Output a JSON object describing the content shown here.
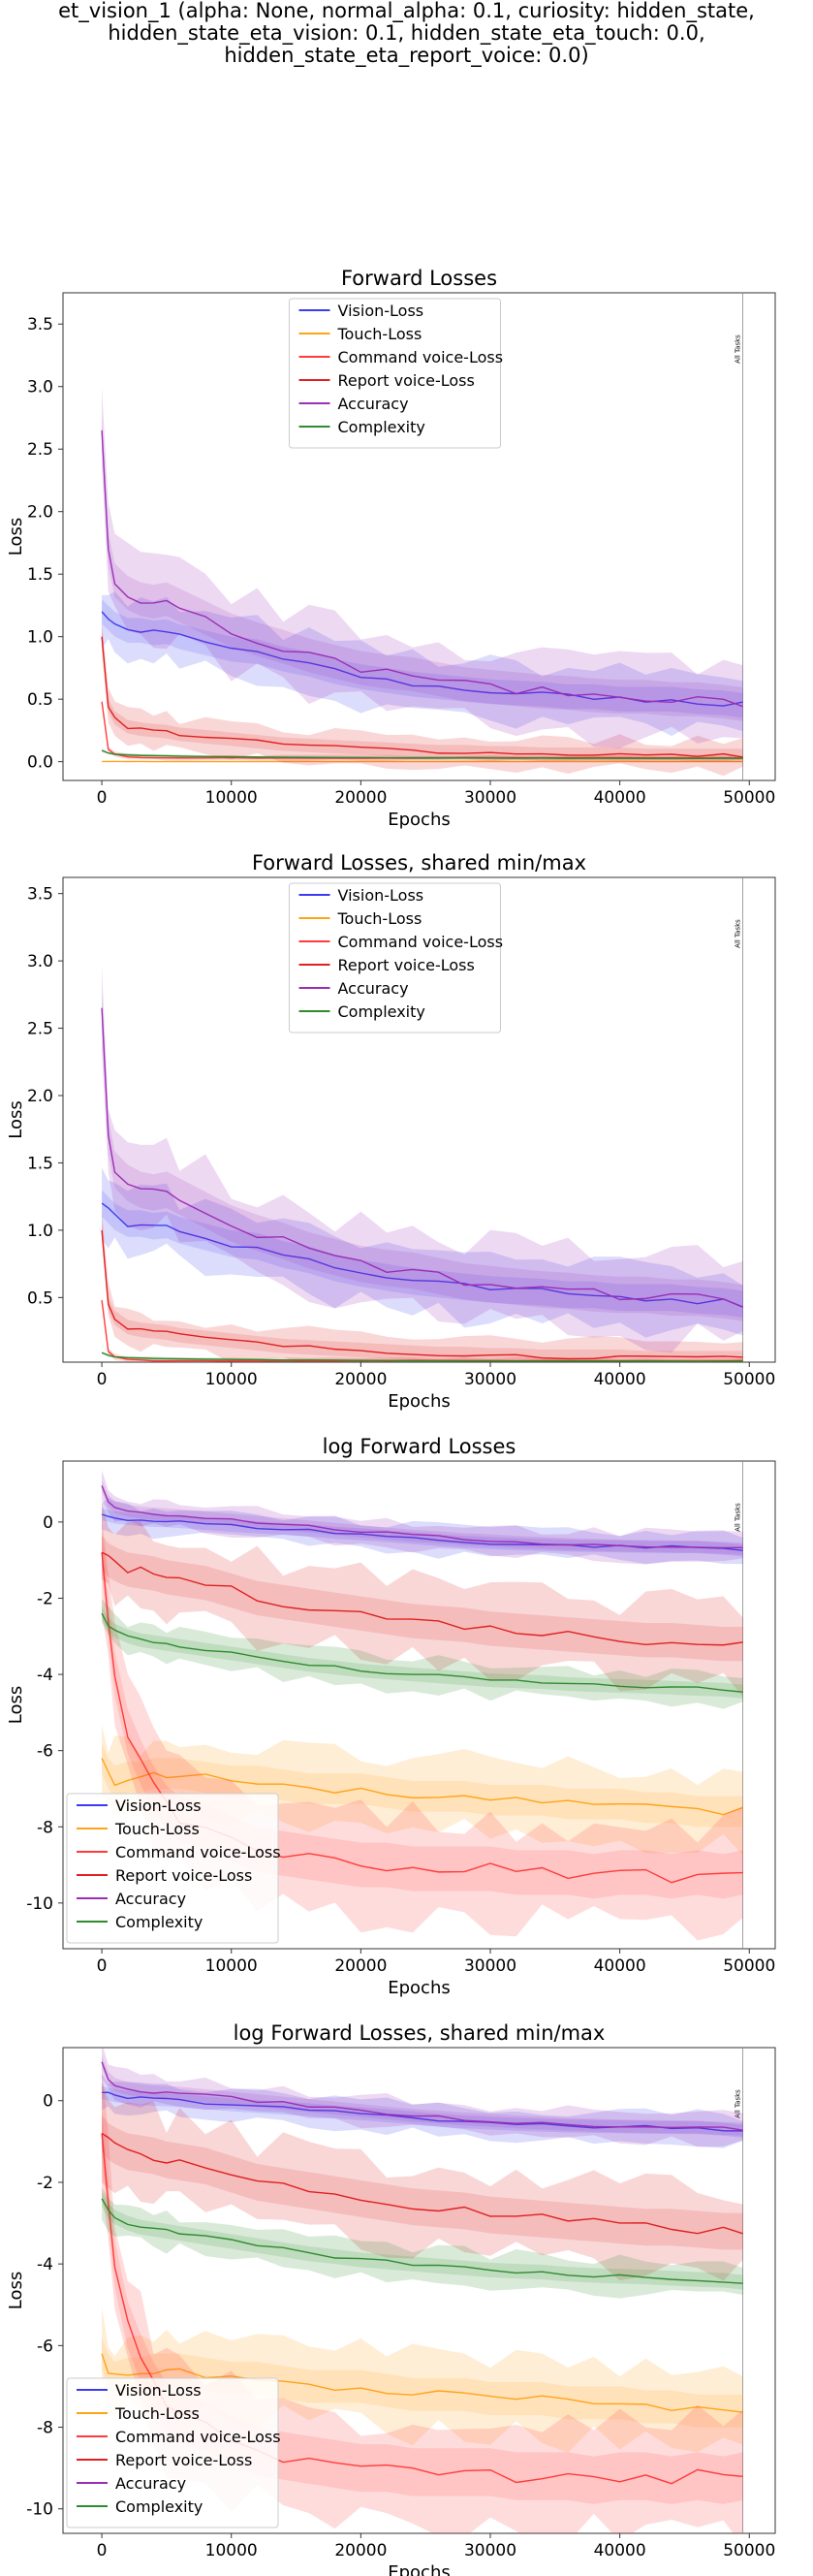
{
  "suptitle": [
    "et_vision_1 (alpha: None, normal_alpha: 0.1, curiosity: hidden_state,",
    "hidden_state_eta_vision: 0.1, hidden_state_eta_touch: 0.0,",
    "hidden_state_eta_report_voice: 0.0)"
  ],
  "colors": {
    "Vision-Loss": "#3b3bf0",
    "Touch-Loss": "#ffa319",
    "Command voice-Loss": "#ff3b3b",
    "Report voice-Loss": "#e02020",
    "Accuracy": "#9a2fb5",
    "Complexity": "#2e8b2e"
  },
  "vertical_marker_label": "All Tasks",
  "chart_data": [
    {
      "type": "line",
      "title": "Forward Losses",
      "xlabel": "Epochs",
      "ylabel": "Loss",
      "xlim": [
        -3000,
        52000
      ],
      "ylim": [
        -0.15,
        3.75
      ],
      "xticks": [
        0,
        10000,
        20000,
        30000,
        40000,
        50000
      ],
      "yticks": [
        0.0,
        0.5,
        1.0,
        1.5,
        2.0,
        2.5,
        3.0,
        3.5
      ],
      "log": false,
      "legend_position": "upper center",
      "vertical_marker_x": 49500,
      "series_names": [
        "Vision-Loss",
        "Touch-Loss",
        "Command voice-Loss",
        "Report voice-Loss",
        "Accuracy",
        "Complexity"
      ]
    },
    {
      "type": "line",
      "title": "Forward Losses, shared min/max",
      "xlabel": "Epochs",
      "ylabel": "Loss",
      "xlim": [
        -3000,
        52000
      ],
      "ylim": [
        0.02,
        3.62
      ],
      "xticks": [
        0,
        10000,
        20000,
        30000,
        40000,
        50000
      ],
      "yticks": [
        0.5,
        1.0,
        1.5,
        2.0,
        2.5,
        3.0,
        3.5
      ],
      "log": false,
      "legend_position": "upper center",
      "vertical_marker_x": 49500,
      "series_names": [
        "Vision-Loss",
        "Touch-Loss",
        "Command voice-Loss",
        "Report voice-Loss",
        "Accuracy",
        "Complexity"
      ]
    },
    {
      "type": "line",
      "title": "log Forward Losses",
      "xlabel": "Epochs",
      "ylabel": "Loss",
      "xlim": [
        -3000,
        52000
      ],
      "ylim": [
        -11.2,
        1.6
      ],
      "xticks": [
        0,
        10000,
        20000,
        30000,
        40000,
        50000
      ],
      "yticks": [
        0,
        -2,
        -4,
        -6,
        -8,
        -10
      ],
      "log": true,
      "legend_position": "lower left",
      "vertical_marker_x": 49500,
      "series_names": [
        "Vision-Loss",
        "Touch-Loss",
        "Command voice-Loss",
        "Report voice-Loss",
        "Accuracy",
        "Complexity"
      ]
    },
    {
      "type": "line",
      "title": "log Forward Losses, shared min/max",
      "xlabel": "Epochs",
      "ylabel": "Loss",
      "xlim": [
        -3000,
        52000
      ],
      "ylim": [
        -10.6,
        1.3
      ],
      "xticks": [
        0,
        10000,
        20000,
        30000,
        40000,
        50000
      ],
      "yticks": [
        0,
        -2,
        -4,
        -6,
        -8,
        -10
      ],
      "log": true,
      "legend_position": "lower left",
      "vertical_marker_x": 49500,
      "series_names": [
        "Vision-Loss",
        "Touch-Loss",
        "Command voice-Loss",
        "Report voice-Loss",
        "Accuracy",
        "Complexity"
      ]
    }
  ],
  "series_values": {
    "epochs": [
      0,
      500,
      1000,
      2000,
      3000,
      4000,
      5000,
      6000,
      8000,
      10000,
      12000,
      14000,
      16000,
      18000,
      20000,
      22000,
      24000,
      26000,
      28000,
      30000,
      32000,
      34000,
      36000,
      38000,
      40000,
      42000,
      44000,
      46000,
      48000,
      49500
    ],
    "linear": {
      "Vision-Loss": [
        1.2,
        1.15,
        1.1,
        1.05,
        1.05,
        1.03,
        1.04,
        1.0,
        0.95,
        0.9,
        0.88,
        0.82,
        0.78,
        0.72,
        0.68,
        0.65,
        0.62,
        0.6,
        0.58,
        0.56,
        0.55,
        0.54,
        0.52,
        0.52,
        0.5,
        0.5,
        0.5,
        0.48,
        0.47,
        0.45
      ],
      "Touch-Loss": [
        0.002,
        0.002,
        0.0015,
        0.0012,
        0.0012,
        0.0011,
        0.0011,
        0.001,
        0.001,
        0.001,
        0.001,
        0.001,
        0.001,
        0.001,
        0.001,
        0.001,
        0.001,
        0.001,
        0.001,
        0.001,
        0.001,
        0.001,
        0.001,
        0.001,
        0.001,
        0.001,
        0.001,
        0.001,
        0.0008,
        0.0005
      ],
      "Command voice-Loss": [
        0.48,
        0.1,
        0.06,
        0.04,
        0.035,
        0.032,
        0.03,
        0.03,
        0.03,
        0.03,
        0.03,
        0.03,
        0.03,
        0.03,
        0.03,
        0.03,
        0.03,
        0.03,
        0.03,
        0.03,
        0.03,
        0.03,
        0.03,
        0.03,
        0.03,
        0.03,
        0.03,
        0.03,
        0.03,
        0.03
      ],
      "Report voice-Loss": [
        1.0,
        0.45,
        0.35,
        0.28,
        0.26,
        0.25,
        0.24,
        0.22,
        0.2,
        0.18,
        0.16,
        0.14,
        0.13,
        0.12,
        0.11,
        0.1,
        0.09,
        0.08,
        0.08,
        0.07,
        0.07,
        0.06,
        0.06,
        0.06,
        0.06,
        0.05,
        0.05,
        0.05,
        0.05,
        0.05
      ],
      "Accuracy": [
        2.65,
        1.7,
        1.45,
        1.35,
        1.3,
        1.28,
        1.3,
        1.25,
        1.15,
        1.05,
        0.98,
        0.92,
        0.85,
        0.8,
        0.75,
        0.72,
        0.7,
        0.66,
        0.62,
        0.6,
        0.58,
        0.56,
        0.55,
        0.53,
        0.52,
        0.52,
        0.5,
        0.5,
        0.48,
        0.46
      ],
      "Complexity": [
        0.09,
        0.07,
        0.06,
        0.055,
        0.05,
        0.048,
        0.046,
        0.044,
        0.042,
        0.04,
        0.038,
        0.036,
        0.035,
        0.034,
        0.033,
        0.032,
        0.031,
        0.03,
        0.03,
        0.03,
        0.029,
        0.029,
        0.028,
        0.028,
        0.028,
        0.028,
        0.027,
        0.027,
        0.027,
        0.027
      ]
    },
    "log": {
      "Vision-Loss": [
        0.2,
        0.16,
        0.12,
        0.08,
        0.05,
        0.03,
        0.02,
        0.0,
        -0.05,
        -0.1,
        -0.14,
        -0.18,
        -0.22,
        -0.28,
        -0.32,
        -0.37,
        -0.42,
        -0.48,
        -0.52,
        -0.55,
        -0.58,
        -0.6,
        -0.62,
        -0.63,
        -0.64,
        -0.65,
        -0.66,
        -0.66,
        -0.7,
        -0.75
      ],
      "Touch-Loss": [
        -6.2,
        -6.6,
        -6.8,
        -6.7,
        -6.7,
        -6.6,
        -6.6,
        -6.6,
        -6.7,
        -6.8,
        -6.8,
        -6.9,
        -7.0,
        -7.0,
        -7.0,
        -7.1,
        -7.2,
        -7.2,
        -7.2,
        -7.3,
        -7.3,
        -7.3,
        -7.4,
        -7.4,
        -7.4,
        -7.5,
        -7.5,
        -7.6,
        -7.6,
        -7.6
      ],
      "Command voice-Loss": [
        -0.8,
        -2.5,
        -4.0,
        -5.5,
        -6.3,
        -7.0,
        -7.5,
        -7.8,
        -8.0,
        -8.3,
        -8.6,
        -8.7,
        -8.8,
        -8.9,
        -9.0,
        -9.0,
        -9.1,
        -9.1,
        -9.1,
        -9.1,
        -9.2,
        -9.2,
        -9.2,
        -9.3,
        -9.2,
        -9.2,
        -9.3,
        -9.2,
        -9.3,
        -9.2
      ],
      "Report voice-Loss": [
        -0.8,
        -1.0,
        -1.1,
        -1.25,
        -1.3,
        -1.35,
        -1.45,
        -1.5,
        -1.6,
        -1.8,
        -2.0,
        -2.1,
        -2.2,
        -2.3,
        -2.4,
        -2.5,
        -2.6,
        -2.65,
        -2.7,
        -2.8,
        -2.85,
        -2.9,
        -2.95,
        -3.0,
        -3.05,
        -3.1,
        -3.1,
        -3.15,
        -3.2,
        -3.2
      ],
      "Accuracy": [
        0.95,
        0.55,
        0.4,
        0.3,
        0.25,
        0.22,
        0.2,
        0.18,
        0.12,
        0.06,
        0.0,
        -0.06,
        -0.12,
        -0.18,
        -0.24,
        -0.3,
        -0.36,
        -0.4,
        -0.45,
        -0.48,
        -0.52,
        -0.55,
        -0.58,
        -0.6,
        -0.62,
        -0.63,
        -0.64,
        -0.65,
        -0.68,
        -0.7
      ],
      "Complexity": [
        -2.4,
        -2.7,
        -2.85,
        -3.0,
        -3.1,
        -3.15,
        -3.2,
        -3.25,
        -3.35,
        -3.45,
        -3.55,
        -3.65,
        -3.75,
        -3.82,
        -3.9,
        -3.95,
        -4.0,
        -4.05,
        -4.1,
        -4.15,
        -4.18,
        -4.2,
        -4.25,
        -4.28,
        -4.3,
        -4.32,
        -4.35,
        -4.38,
        -4.4,
        -4.45
      ]
    },
    "band_halfwidth": {
      "linear": {
        "Vision-Loss": 0.22,
        "Touch-Loss": 0.001,
        "Command voice-Loss": 0.02,
        "Report voice-Loss": 0.12,
        "Accuracy": 0.3,
        "Complexity": 0.01
      },
      "log": {
        "Vision-Loss": 0.35,
        "Touch-Loss": 0.9,
        "Command voice-Loss": 1.3,
        "Report voice-Loss": 1.0,
        "Accuracy": 0.35,
        "Complexity": 0.4
      }
    }
  }
}
